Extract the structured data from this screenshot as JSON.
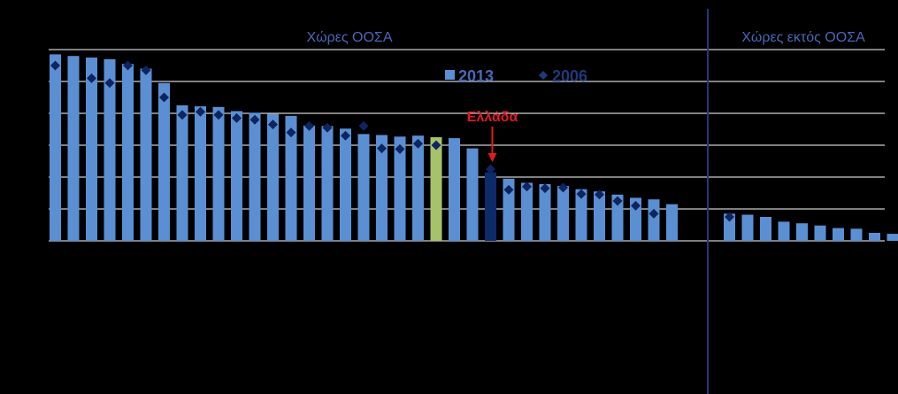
{
  "chart_data": {
    "type": "bar",
    "regions": {
      "oecd_label": "Χώρες ΟΟΣΑ",
      "non_oecd_label": "Χώρες εκτός ΟΟΣΑ"
    },
    "legend": {
      "bar_label": "2013",
      "marker_label": "2006"
    },
    "callout": {
      "label": "Ελλάδα",
      "target_index": 24
    },
    "highlight": {
      "oecd_average_index": 21,
      "greece_index": 24
    },
    "ylim": [
      0,
      6
    ],
    "gridlines": [
      1,
      2,
      3,
      4,
      5,
      6
    ],
    "series": [
      {
        "name": "2013",
        "values": [
          5.85,
          5.8,
          5.75,
          5.7,
          5.55,
          5.4,
          4.95,
          4.25,
          4.22,
          4.2,
          4.07,
          4.02,
          3.98,
          3.92,
          3.62,
          3.6,
          3.52,
          3.35,
          3.32,
          3.27,
          3.3,
          3.25,
          3.22,
          2.9,
          2.15,
          1.95,
          1.82,
          1.78,
          1.72,
          1.62,
          1.55,
          1.45,
          1.35,
          1.3,
          1.15,
          0.85,
          0.82,
          0.75,
          0.6,
          0.55,
          0.48,
          0.4,
          0.38,
          0.25,
          0.22
        ]
      },
      {
        "name": "2006",
        "values": [
          5.5,
          null,
          5.1,
          4.95,
          5.5,
          5.35,
          4.5,
          3.95,
          4.05,
          3.95,
          3.85,
          3.8,
          3.65,
          3.4,
          3.6,
          3.55,
          3.3,
          3.6,
          2.9,
          2.88,
          3.05,
          3.0,
          null,
          null,
          2.25,
          1.6,
          1.7,
          1.65,
          1.67,
          1.47,
          1.45,
          1.25,
          1.1,
          0.85,
          null,
          0.75,
          null,
          null,
          null,
          null,
          null,
          null,
          null,
          null,
          null
        ]
      }
    ],
    "oecd_count": 35,
    "non_oecd_count": 10,
    "colors": {
      "background": "#000000",
      "bar": "#5b8fd4",
      "oecd_average_bar": "#a6c36a",
      "greece_bar": "#0d2a6b",
      "marker": "#0d2560",
      "gridline": "#ffffff",
      "separator": "#1f3a78",
      "region_label": "#4a68b8",
      "legend_2013": "#4a68b8",
      "legend_2006": "#1f3a78",
      "callout": "#e01b24"
    }
  }
}
